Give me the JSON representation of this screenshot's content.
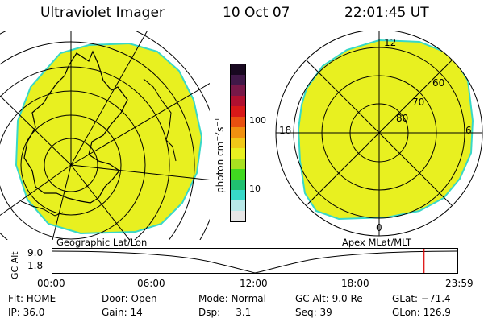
{
  "header": {
    "title": "Ultraviolet Imager",
    "date": "10 Oct 07",
    "time": "22:01:45 UT"
  },
  "colorbar": {
    "label": "photon cm^-2 s^-1",
    "label_parts": {
      "base": "photon cm",
      "exp1": "−2",
      "mid": "s",
      "exp2": "−1"
    },
    "tick_high": "100",
    "tick_low": "10",
    "colors": [
      "#e6e6e6",
      "#b8e8e8",
      "#38d8c8",
      "#20c070",
      "#40d820",
      "#a8e020",
      "#e8f020",
      "#f0c818",
      "#f09010",
      "#e85010",
      "#d81818",
      "#b01030",
      "#781848",
      "#401848",
      "#180820"
    ]
  },
  "polar_plot": {
    "lat_labels": [
      "60",
      "70",
      "80"
    ],
    "mlt_labels": {
      "top": "12",
      "right": "6",
      "bottom": "0",
      "left": "18"
    }
  },
  "projection_labels": {
    "left": "Geographic Lat/Lon",
    "right": "Apex MLat/MLT"
  },
  "altitude_plot": {
    "ylabel": "GC Alt",
    "y_ticks": [
      "9.0",
      "1.8"
    ],
    "x_ticks": [
      "00:00",
      "06:00",
      "12:00",
      "18:00",
      "23:59"
    ],
    "marker_color": "#dd0000",
    "current_hour": 22.03
  },
  "status": {
    "filter": "Flt: HOME",
    "door": "Door: Open",
    "mode": "Mode: Normal",
    "gc_alt": "GC Alt: 9.0 Re",
    "glat": "GLat: −71.4",
    "ip": "IP: 36.0",
    "gain": "Gain: 14",
    "dsp": "Dsp:     3.1",
    "seq": "Seq: 39",
    "glon": "GLon: 126.9"
  },
  "image_colors": {
    "fill": "#e8f020",
    "edge": "#38d8c8"
  }
}
